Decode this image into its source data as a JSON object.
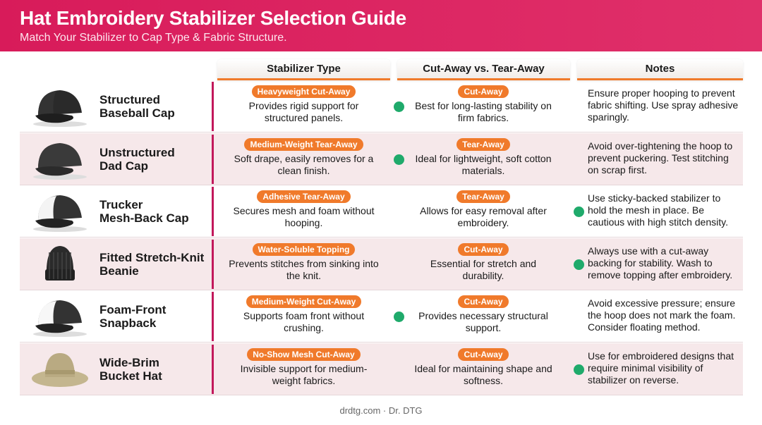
{
  "header": {
    "title": "Hat Embroidery Stabilizer Selection Guide",
    "subtitle": "Match Your Stabilizer to Cap Type & Fabric Structure."
  },
  "table": {
    "columns": [
      "Stabilizer Type",
      "Cut-Away vs. Tear-Away",
      "Notes"
    ],
    "rows": [
      {
        "name": [
          "Structured",
          "Baseball Cap"
        ],
        "stabilizer_badge": "Heavyweight Cut-Away",
        "stabilizer_desc": "Provides rigid support for structured panels.",
        "method_badge": "Cut-Away",
        "method_desc": "Best for long-lasting stability on firm fabrics.",
        "notes": "Ensure proper hooping to prevent fabric shifting. Use spray adhesive sparingly."
      },
      {
        "name": [
          "Unstructured",
          "Dad Cap"
        ],
        "stabilizer_badge": "Medium-Weight Tear-Away",
        "stabilizer_desc": "Soft drape, easily removes for a clean finish.",
        "method_badge": "Tear-Away",
        "method_desc": "Ideal for lightweight, soft cotton materials.",
        "notes": "Avoid over-tightening the hoop to prevent puckering. Test stitching on scrap first."
      },
      {
        "name": [
          "Trucker",
          "Mesh-Back Cap"
        ],
        "stabilizer_badge": "Adhesive Tear-Away",
        "stabilizer_desc": "Secures mesh and foam without hooping.",
        "method_badge": "Tear-Away",
        "method_desc": "Allows for easy removal after embroidery.",
        "notes": "Use sticky-backed stabilizer to hold the mesh in place. Be cautious with high stitch density."
      },
      {
        "name": [
          "Fitted Stretch-Knit",
          "Beanie"
        ],
        "stabilizer_badge": "Water-Soluble Topping",
        "stabilizer_desc": "Prevents stitches from sinking into the knit.",
        "method_badge": "Cut-Away",
        "method_desc": "Essential for stretch and durability.",
        "notes": "Always use with a cut-away backing for stability. Wash to remove topping after embroidery."
      },
      {
        "name": [
          "Foam-Front",
          "Snapback"
        ],
        "stabilizer_badge": "Medium-Weight Cut-Away",
        "stabilizer_desc": "Supports foam front without crushing.",
        "method_badge": "Cut-Away",
        "method_desc": "Provides necessary structural support.",
        "notes": "Avoid excessive pressure; ensure the hoop does not mark the foam. Consider floating method."
      },
      {
        "name": [
          "Wide-Brim",
          "Bucket Hat"
        ],
        "stabilizer_badge": "No-Show Mesh Cut-Away",
        "stabilizer_desc": "Invisible support for medium-weight fabrics.",
        "method_badge": "Cut-Away",
        "method_desc": "Ideal for maintaining shape and softness.",
        "notes": "Use for embroidered designs that require minimal visibility of stabilizer on reverse."
      }
    ]
  },
  "footer": "drdtg.com · Dr. DTG"
}
